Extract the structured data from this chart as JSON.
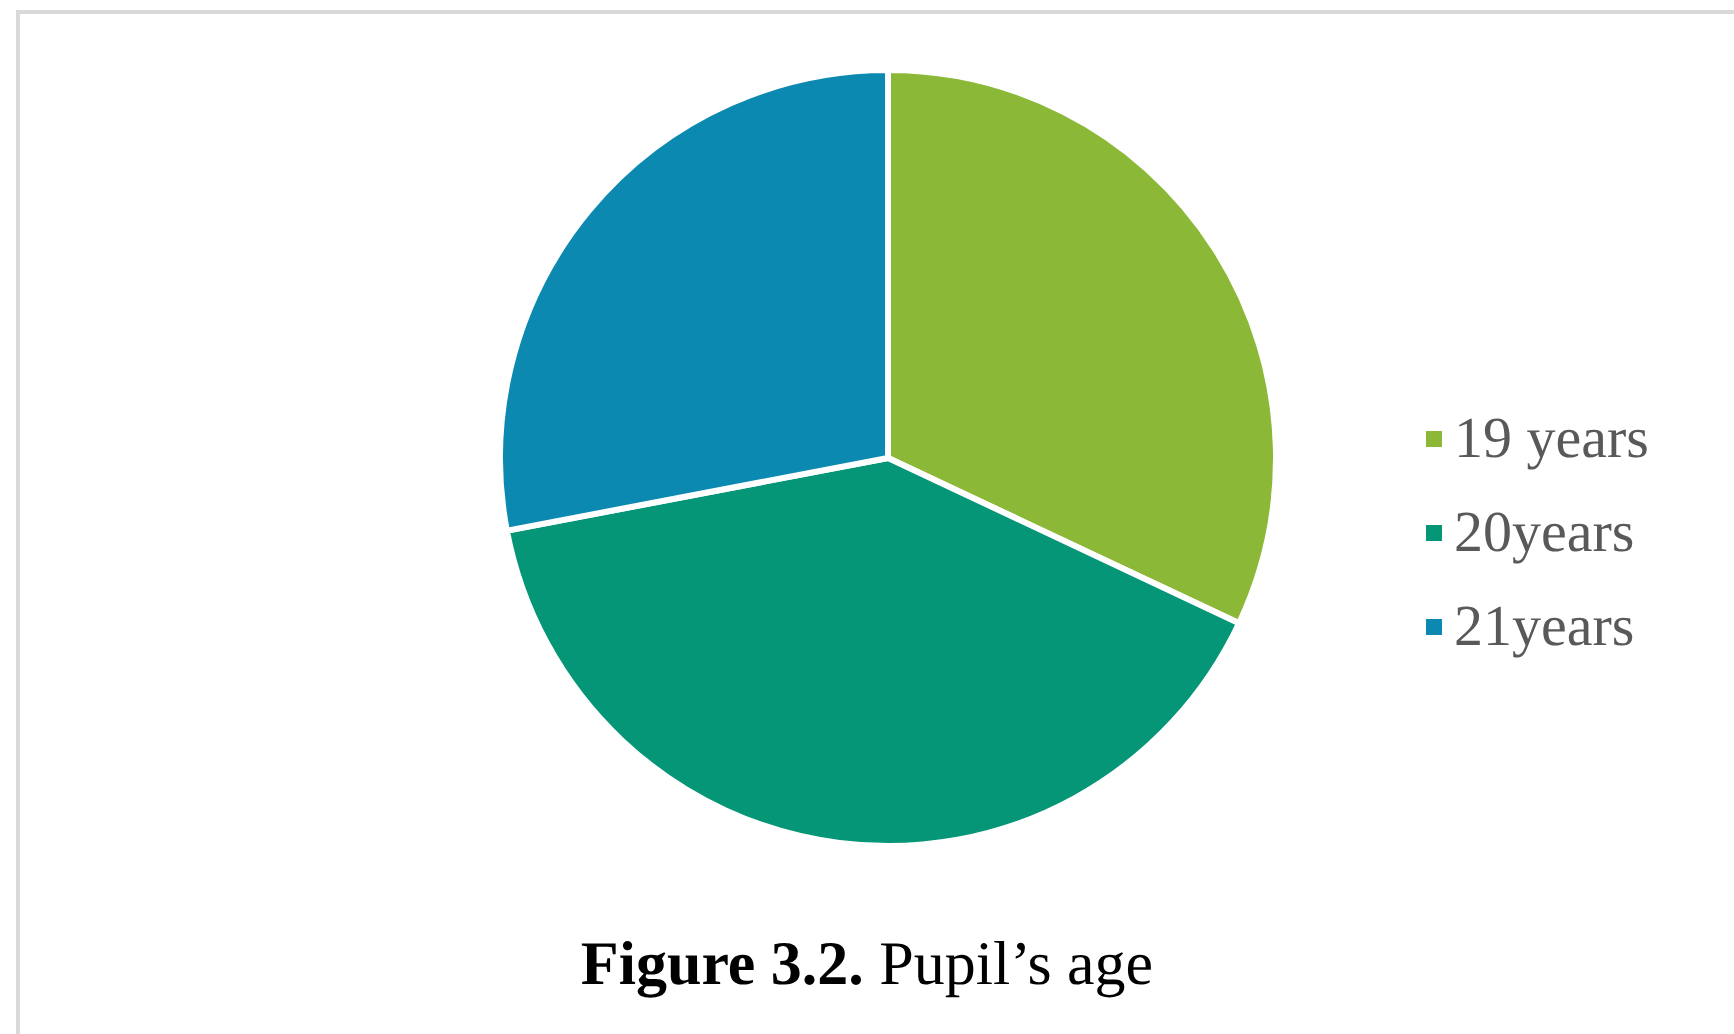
{
  "chart_data": {
    "type": "pie",
    "title": "Figure 3.2. Pupil’s age",
    "categories": [
      "19 years",
      "20years",
      "21years"
    ],
    "values": [
      32,
      40,
      28
    ],
    "colors": [
      "#8bb836",
      "#049676",
      "#0b89b1"
    ],
    "legend": "right"
  }
}
